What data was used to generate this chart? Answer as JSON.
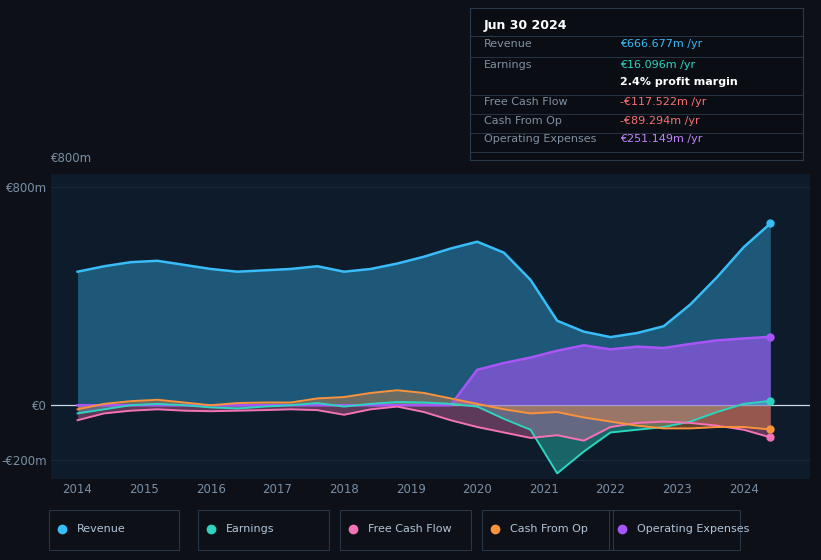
{
  "bg_color": "#0d1117",
  "plot_bg_color": "#0d1b2a",
  "info_title": "Jun 30 2024",
  "info_rows": [
    {
      "label": "Revenue",
      "value": "€666.677m /yr",
      "value_color": "#38bdf8",
      "bold_value": false
    },
    {
      "label": "Earnings",
      "value": "€16.096m /yr",
      "value_color": "#2dd4bf",
      "bold_value": false
    },
    {
      "label": "",
      "value": "2.4% profit margin",
      "value_color": "#ffffff",
      "bold_value": true
    },
    {
      "label": "Free Cash Flow",
      "value": "-€117.522m /yr",
      "value_color": "#f87171",
      "bold_value": false
    },
    {
      "label": "Cash From Op",
      "value": "-€89.294m /yr",
      "value_color": "#f87171",
      "bold_value": false
    },
    {
      "label": "Operating Expenses",
      "value": "€251.149m /yr",
      "value_color": "#c084fc",
      "bold_value": false
    }
  ],
  "years": [
    2014.0,
    2014.4,
    2014.8,
    2015.2,
    2015.6,
    2016.0,
    2016.4,
    2016.8,
    2017.2,
    2017.6,
    2018.0,
    2018.4,
    2018.8,
    2019.2,
    2019.6,
    2020.0,
    2020.4,
    2020.8,
    2021.2,
    2021.6,
    2022.0,
    2022.4,
    2022.8,
    2023.2,
    2023.6,
    2024.0,
    2024.4
  ],
  "revenue": [
    490,
    510,
    525,
    530,
    515,
    500,
    490,
    495,
    500,
    510,
    490,
    500,
    520,
    545,
    575,
    600,
    560,
    460,
    310,
    270,
    250,
    265,
    290,
    370,
    470,
    580,
    667
  ],
  "earnings": [
    -30,
    -15,
    0,
    5,
    0,
    -8,
    -12,
    -5,
    0,
    8,
    -5,
    5,
    12,
    10,
    5,
    -5,
    -50,
    -90,
    -250,
    -170,
    -100,
    -90,
    -80,
    -60,
    -25,
    5,
    16
  ],
  "fcf": [
    -55,
    -30,
    -20,
    -15,
    -20,
    -22,
    -20,
    -18,
    -15,
    -18,
    -35,
    -15,
    -5,
    -25,
    -55,
    -80,
    -100,
    -120,
    -110,
    -130,
    -80,
    -65,
    -60,
    -65,
    -75,
    -90,
    -118
  ],
  "cash_from_op": [
    -15,
    5,
    15,
    20,
    10,
    0,
    8,
    10,
    10,
    25,
    30,
    45,
    55,
    45,
    25,
    5,
    -15,
    -30,
    -25,
    -45,
    -60,
    -75,
    -85,
    -85,
    -80,
    -80,
    -89
  ],
  "op_expenses": [
    0,
    0,
    0,
    0,
    0,
    0,
    0,
    0,
    0,
    0,
    0,
    0,
    0,
    0,
    0,
    130,
    155,
    175,
    200,
    220,
    205,
    215,
    210,
    225,
    238,
    245,
    251
  ],
  "ylim": [
    -270,
    850
  ],
  "yticks": [
    -200,
    0,
    800
  ],
  "ytick_labels": [
    "-€200m",
    "€0",
    "€800m"
  ],
  "xlim": [
    2013.6,
    2025.0
  ],
  "xticks": [
    2014,
    2015,
    2016,
    2017,
    2018,
    2019,
    2020,
    2021,
    2022,
    2023,
    2024
  ],
  "colors": {
    "revenue": "#38bdf8",
    "earnings": "#2dd4bf",
    "fcf": "#f472b6",
    "cash_from_op": "#fb923c",
    "op_expenses": "#a855f7"
  },
  "legend_items": [
    {
      "label": "Revenue",
      "color": "#38bdf8"
    },
    {
      "label": "Earnings",
      "color": "#2dd4bf"
    },
    {
      "label": "Free Cash Flow",
      "color": "#f472b6"
    },
    {
      "label": "Cash From Op",
      "color": "#fb923c"
    },
    {
      "label": "Operating Expenses",
      "color": "#a855f7"
    }
  ]
}
